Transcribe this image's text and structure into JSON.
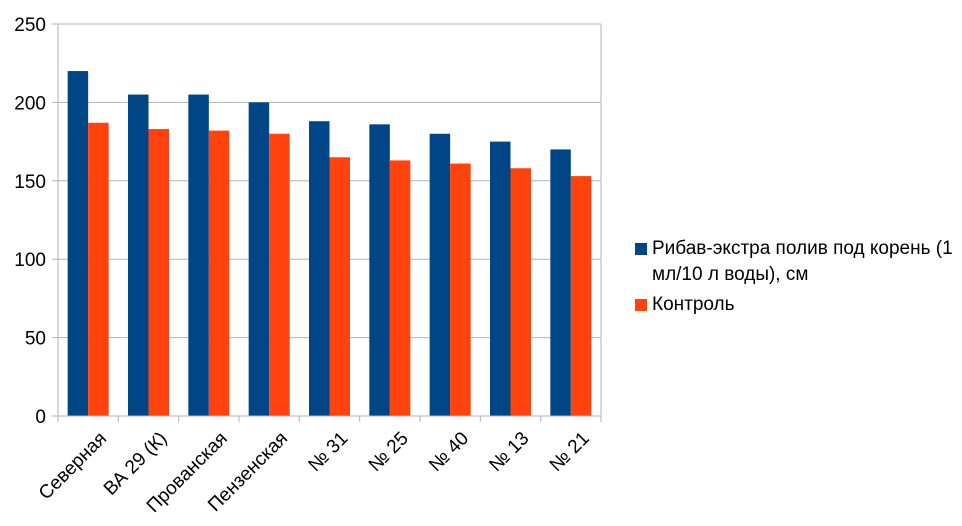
{
  "chart_data": {
    "type": "bar",
    "categories": [
      "Северная",
      "ВА 29 (К)",
      "Прованская",
      "Пензенская",
      "№ 31",
      "№ 25",
      "№ 40",
      "№ 13",
      "№ 21"
    ],
    "series": [
      {
        "name": "Рибав-экстра полив под корень (1 мл/10 л воды), см",
        "color": "#004586",
        "values": [
          220,
          205,
          205,
          200,
          188,
          186,
          180,
          175,
          170
        ]
      },
      {
        "name": "Контроль",
        "color": "#ff420e",
        "values": [
          187,
          183,
          182,
          180,
          165,
          163,
          161,
          158,
          153
        ]
      }
    ],
    "yticks": [
      0,
      50,
      100,
      150,
      200,
      250
    ],
    "ylim": [
      0,
      250
    ],
    "title": "",
    "xlabel": "",
    "ylabel": "",
    "grid": true,
    "legend_position": "right"
  }
}
